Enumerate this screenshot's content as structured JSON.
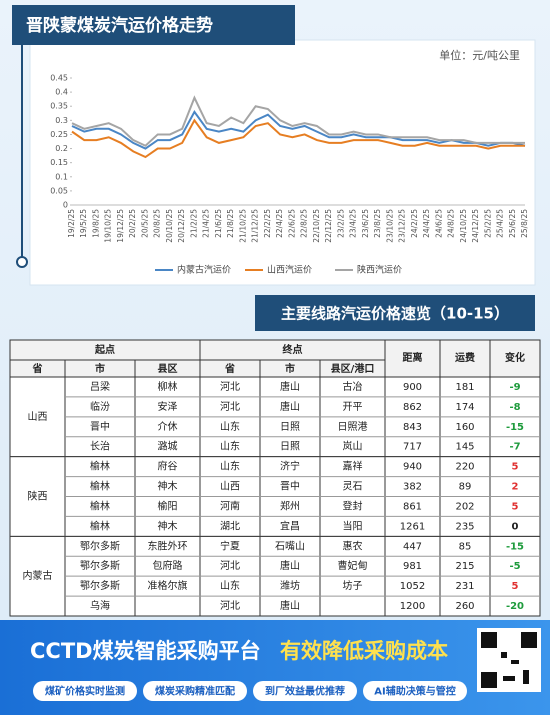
{
  "chart_data": {
    "type": "line",
    "title": "晋陕蒙煤炭汽运价格走势",
    "unit": "单位：元/吨公里",
    "categories": [
      "19/2/25",
      "19/5/25",
      "19/8/25",
      "19/10/25",
      "19/12/25",
      "20/2/25",
      "20/5/25",
      "20/8/25",
      "20/10/25",
      "20/12/25",
      "21/2/25",
      "21/4/25",
      "21/6/25",
      "21/8/25",
      "21/10/25",
      "21/12/25",
      "22/2/25",
      "22/4/25",
      "22/6/25",
      "22/8/25",
      "22/10/25",
      "22/12/25",
      "23/2/25",
      "23/4/25",
      "23/6/25",
      "23/8/25",
      "23/10/25",
      "23/12/25",
      "24/2/25",
      "24/4/25",
      "24/6/25",
      "24/8/25",
      "24/10/25",
      "24/12/25",
      "25/2/25",
      "25/4/25",
      "25/6/25",
      "25/8/25"
    ],
    "series": [
      {
        "name": "内蒙古汽运价",
        "color": "#4a86c5",
        "values": [
          0.28,
          0.26,
          0.27,
          0.27,
          0.25,
          0.22,
          0.2,
          0.23,
          0.23,
          0.25,
          0.33,
          0.27,
          0.26,
          0.27,
          0.26,
          0.3,
          0.32,
          0.28,
          0.27,
          0.28,
          0.26,
          0.24,
          0.24,
          0.25,
          0.24,
          0.24,
          0.24,
          0.23,
          0.23,
          0.23,
          0.22,
          0.23,
          0.22,
          0.22,
          0.21,
          0.22,
          0.22,
          0.21
        ]
      },
      {
        "name": "山西汽运价",
        "color": "#e67e22",
        "values": [
          0.26,
          0.23,
          0.23,
          0.24,
          0.22,
          0.19,
          0.17,
          0.2,
          0.2,
          0.22,
          0.3,
          0.24,
          0.22,
          0.23,
          0.24,
          0.28,
          0.29,
          0.25,
          0.24,
          0.25,
          0.23,
          0.22,
          0.22,
          0.23,
          0.23,
          0.23,
          0.22,
          0.21,
          0.21,
          0.22,
          0.21,
          0.21,
          0.21,
          0.21,
          0.2,
          0.21,
          0.21,
          0.21
        ]
      },
      {
        "name": "陕西汽运价",
        "color": "#a5a5a5",
        "values": [
          0.29,
          0.27,
          0.28,
          0.29,
          0.27,
          0.23,
          0.21,
          0.25,
          0.25,
          0.27,
          0.38,
          0.29,
          0.28,
          0.31,
          0.29,
          0.35,
          0.34,
          0.3,
          0.28,
          0.29,
          0.28,
          0.25,
          0.25,
          0.26,
          0.25,
          0.25,
          0.24,
          0.24,
          0.24,
          0.24,
          0.23,
          0.23,
          0.23,
          0.22,
          0.22,
          0.22,
          0.22,
          0.22
        ]
      }
    ],
    "ylim": [
      0,
      0.45
    ],
    "yticks": [
      0,
      0.05,
      0.1,
      0.15,
      0.2,
      0.25,
      0.3,
      0.35,
      0.4,
      0.45
    ],
    "grid": false,
    "legend": "bottom"
  },
  "table": {
    "title": "主要线路汽运价格速览（10-15）",
    "origin": "起点",
    "destination": "终点",
    "origin_columns": [
      "省",
      "市",
      "县区"
    ],
    "destination_columns": [
      "省",
      "市",
      "县区/港口"
    ],
    "distance": "距离",
    "fee": "运费",
    "change": "变化",
    "groups": [
      {
        "province": "山西",
        "rows": [
          {
            "city": "吕梁",
            "county": "柳林",
            "to_province": "河北",
            "to_city": "唐山",
            "to_county": "古冶",
            "distance": 900,
            "fee": 181,
            "change": -9
          },
          {
            "city": "临汾",
            "county": "安泽",
            "to_province": "河北",
            "to_city": "唐山",
            "to_county": "开平",
            "distance": 862,
            "fee": 174,
            "change": -8
          },
          {
            "city": "晋中",
            "county": "介休",
            "to_province": "山东",
            "to_city": "日照",
            "to_county": "日照港",
            "distance": 843,
            "fee": 160,
            "change": -15
          },
          {
            "city": "长治",
            "county": "潞城",
            "to_province": "山东",
            "to_city": "日照",
            "to_county": "岚山",
            "distance": 717,
            "fee": 145,
            "change": -7
          }
        ]
      },
      {
        "province": "陕西",
        "rows": [
          {
            "city": "榆林",
            "county": "府谷",
            "to_province": "山东",
            "to_city": "济宁",
            "to_county": "嘉祥",
            "distance": 940,
            "fee": 220,
            "change": 5
          },
          {
            "city": "榆林",
            "county": "神木",
            "to_province": "山西",
            "to_city": "晋中",
            "to_county": "灵石",
            "distance": 382,
            "fee": 89,
            "change": 2
          },
          {
            "city": "榆林",
            "county": "榆阳",
            "to_province": "河南",
            "to_city": "郑州",
            "to_county": "登封",
            "distance": 861,
            "fee": 202,
            "change": 5
          },
          {
            "city": "榆林",
            "county": "神木",
            "to_province": "湖北",
            "to_city": "宜昌",
            "to_county": "当阳",
            "distance": 1261,
            "fee": 235,
            "change": 0
          }
        ]
      },
      {
        "province": "内蒙古",
        "rows": [
          {
            "city": "鄂尔多斯",
            "county": "东胜外环",
            "to_province": "宁夏",
            "to_city": "石嘴山",
            "to_county": "惠农",
            "distance": 447,
            "fee": 85,
            "change": -15
          },
          {
            "city": "鄂尔多斯",
            "county": "包府路",
            "to_province": "河北",
            "to_city": "唐山",
            "to_county": "曹妃甸",
            "distance": 981,
            "fee": 215,
            "change": -5
          },
          {
            "city": "鄂尔多斯",
            "county": "准格尔旗",
            "to_province": "山东",
            "to_city": "潍坊",
            "to_county": "坊子",
            "distance": 1052,
            "fee": 231,
            "change": 5
          },
          {
            "city": "乌海",
            "to_province": "河北",
            "to_city": "唐山",
            "distance": 1200,
            "fee": 260,
            "change": -20
          }
        ]
      }
    ]
  },
  "banner": {
    "brand": "CCTD煤炭智能采购平台",
    "slogan": "有效降低采购成本",
    "features": [
      "煤矿价格实时监测",
      "煤炭采购精准匹配",
      "到厂效益最优推荐",
      "AI辅助决策与管控"
    ]
  }
}
